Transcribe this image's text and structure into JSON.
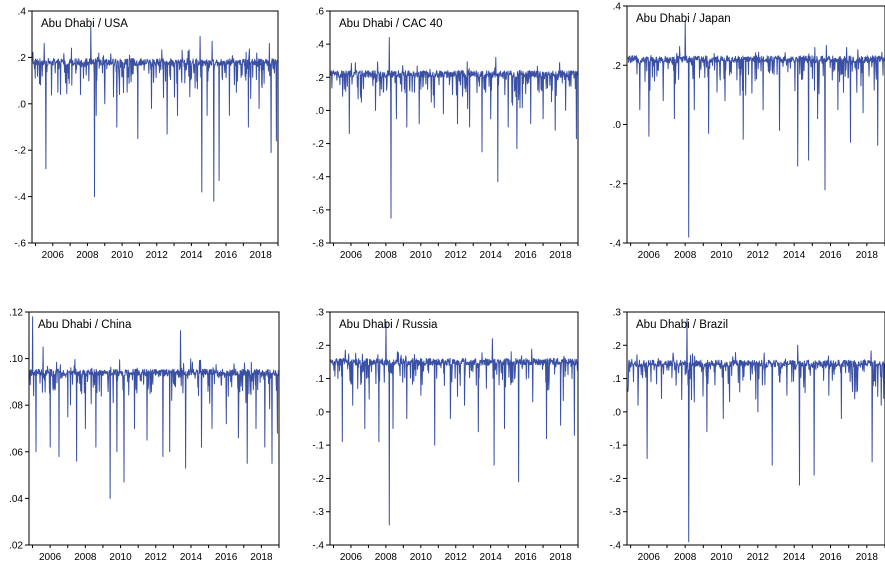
{
  "figure": {
    "series_color": "#3a50a4"
  },
  "chart_data": [
    {
      "type": "line",
      "title": "Abu Dhabi / USA",
      "xlim": [
        2004.8,
        2019.0
      ],
      "ylim": [
        -0.6,
        0.4
      ],
      "y_ticks": [
        -0.6,
        -0.4,
        -0.2,
        0.0,
        0.2,
        0.4
      ],
      "y_tick_labels": [
        "-.6",
        "-.4",
        "-.2",
        ".0",
        ".2",
        ".4"
      ],
      "x_ticks": [
        2006,
        2008,
        2010,
        2012,
        2014,
        2016,
        2018
      ],
      "x_tick_labels": [
        "2006",
        "2008",
        "2010",
        "2012",
        "2014",
        "2016",
        "2018"
      ],
      "baseline": 0.18,
      "spikes": [
        [
          2005.6,
          -0.28
        ],
        [
          2005.5,
          0.26
        ],
        [
          2006.3,
          0.05
        ],
        [
          2007.1,
          0.08
        ],
        [
          2007.6,
          0.04
        ],
        [
          2008.2,
          0.33
        ],
        [
          2008.4,
          -0.4
        ],
        [
          2008.5,
          -0.05
        ],
        [
          2009.0,
          0.0
        ],
        [
          2009.7,
          -0.1
        ],
        [
          2010.3,
          0.05
        ],
        [
          2010.9,
          -0.15
        ],
        [
          2011.7,
          -0.02
        ],
        [
          2012.6,
          -0.13
        ],
        [
          2013.2,
          -0.05
        ],
        [
          2013.9,
          0.03
        ],
        [
          2014.5,
          0.29
        ],
        [
          2014.6,
          -0.38
        ],
        [
          2014.9,
          -0.05
        ],
        [
          2015.2,
          0.27
        ],
        [
          2015.3,
          -0.42
        ],
        [
          2015.6,
          -0.33
        ],
        [
          2016.2,
          -0.05
        ],
        [
          2016.6,
          0.05
        ],
        [
          2017.3,
          -0.1
        ],
        [
          2017.9,
          -0.02
        ],
        [
          2018.5,
          0.26
        ],
        [
          2018.6,
          -0.21
        ],
        [
          2018.9,
          -0.16
        ]
      ]
    },
    {
      "type": "line",
      "title": "Abu Dhabi / CAC 40",
      "xlim": [
        2004.8,
        2019.0
      ],
      "ylim": [
        -0.8,
        0.6
      ],
      "y_ticks": [
        -0.8,
        -0.6,
        -0.4,
        -0.2,
        0.0,
        0.2,
        0.4,
        0.6
      ],
      "y_tick_labels": [
        "-.8",
        "-.6",
        "-.4",
        "-.2",
        ".0",
        ".2",
        ".4",
        ".6"
      ],
      "x_ticks": [
        2006,
        2008,
        2010,
        2012,
        2014,
        2016,
        2018
      ],
      "x_tick_labels": [
        "2006",
        "2008",
        "2010",
        "2012",
        "2014",
        "2016",
        "2018"
      ],
      "baseline": 0.22,
      "spikes": [
        [
          2005.9,
          -0.14
        ],
        [
          2006.6,
          0.05
        ],
        [
          2007.4,
          0.0
        ],
        [
          2008.2,
          0.44
        ],
        [
          2008.3,
          -0.65
        ],
        [
          2008.6,
          -0.05
        ],
        [
          2009.2,
          -0.1
        ],
        [
          2009.9,
          -0.08
        ],
        [
          2010.6,
          0.05
        ],
        [
          2011.3,
          -0.02
        ],
        [
          2012.1,
          -0.08
        ],
        [
          2012.8,
          -0.1
        ],
        [
          2013.5,
          -0.25
        ],
        [
          2014.0,
          -0.05
        ],
        [
          2014.3,
          0.32
        ],
        [
          2014.4,
          -0.43
        ],
        [
          2015.0,
          -0.1
        ],
        [
          2015.5,
          -0.23
        ],
        [
          2016.3,
          -0.08
        ],
        [
          2017.0,
          -0.05
        ],
        [
          2017.7,
          -0.12
        ],
        [
          2018.3,
          0.0
        ],
        [
          2018.9,
          -0.17
        ]
      ]
    },
    {
      "type": "line",
      "title": "Abu Dhabi / Japan",
      "xlim": [
        2004.8,
        2019.0
      ],
      "ylim": [
        -0.4,
        0.4
      ],
      "y_ticks": [
        -0.4,
        -0.2,
        0.0,
        0.2,
        0.4
      ],
      "y_tick_labels": [
        "-.4",
        "-.2",
        ".0",
        ".2",
        ".4"
      ],
      "x_ticks": [
        2006,
        2008,
        2010,
        2012,
        2014,
        2016,
        2018
      ],
      "x_tick_labels": [
        "2006",
        "2008",
        "2010",
        "2012",
        "2014",
        "2016",
        "2018"
      ],
      "baseline": 0.22,
      "spikes": [
        [
          2005.5,
          0.05
        ],
        [
          2006.0,
          -0.04
        ],
        [
          2006.8,
          0.08
        ],
        [
          2007.4,
          0.02
        ],
        [
          2008.0,
          0.35
        ],
        [
          2008.2,
          -0.38
        ],
        [
          2008.5,
          0.05
        ],
        [
          2009.3,
          -0.03
        ],
        [
          2010.2,
          0.08
        ],
        [
          2011.2,
          -0.05
        ],
        [
          2012.3,
          0.05
        ],
        [
          2013.2,
          -0.02
        ],
        [
          2014.2,
          -0.14
        ],
        [
          2014.8,
          -0.12
        ],
        [
          2015.3,
          0.02
        ],
        [
          2015.7,
          -0.22
        ],
        [
          2016.4,
          0.05
        ],
        [
          2017.1,
          -0.06
        ],
        [
          2017.8,
          0.04
        ],
        [
          2018.6,
          -0.07
        ]
      ]
    },
    {
      "type": "line",
      "title": "Abu Dhabi / China",
      "xlim": [
        2004.8,
        2019.0
      ],
      "ylim": [
        0.02,
        0.12
      ],
      "y_ticks": [
        0.02,
        0.04,
        0.06,
        0.08,
        0.1,
        0.12
      ],
      "y_tick_labels": [
        ".02",
        ".04",
        ".06",
        ".08",
        ".10",
        ".12"
      ],
      "x_ticks": [
        2006,
        2008,
        2010,
        2012,
        2014,
        2016,
        2018
      ],
      "x_tick_labels": [
        "2006",
        "2008",
        "2010",
        "2012",
        "2014",
        "2016",
        "2018"
      ],
      "baseline": 0.094,
      "spikes": [
        [
          2005.0,
          0.118
        ],
        [
          2005.2,
          0.06
        ],
        [
          2005.6,
          0.105
        ],
        [
          2006.0,
          0.062
        ],
        [
          2006.5,
          0.058
        ],
        [
          2007.0,
          0.075
        ],
        [
          2007.5,
          0.056
        ],
        [
          2008.0,
          0.07
        ],
        [
          2008.6,
          0.062
        ],
        [
          2009.4,
          0.04
        ],
        [
          2009.8,
          0.06
        ],
        [
          2010.2,
          0.047
        ],
        [
          2010.8,
          0.07
        ],
        [
          2011.5,
          0.065
        ],
        [
          2012.4,
          0.058
        ],
        [
          2012.8,
          0.06
        ],
        [
          2013.4,
          0.112
        ],
        [
          2013.7,
          0.053
        ],
        [
          2014.6,
          0.062
        ],
        [
          2015.2,
          0.07
        ],
        [
          2016.0,
          0.072
        ],
        [
          2016.7,
          0.066
        ],
        [
          2017.2,
          0.055
        ],
        [
          2017.7,
          0.07
        ],
        [
          2018.2,
          0.062
        ],
        [
          2018.6,
          0.055
        ],
        [
          2018.9,
          0.068
        ]
      ]
    },
    {
      "type": "line",
      "title": "Abu Dhabi / Russia",
      "xlim": [
        2004.8,
        2019.0
      ],
      "ylim": [
        -0.4,
        0.3
      ],
      "y_ticks": [
        -0.4,
        -0.3,
        -0.2,
        -0.1,
        0.0,
        0.1,
        0.2,
        0.3
      ],
      "y_tick_labels": [
        "-.4",
        "-.3",
        "-.2",
        "-.1",
        ".0",
        ".1",
        ".2",
        ".3"
      ],
      "x_ticks": [
        2006,
        2008,
        2010,
        2012,
        2014,
        2016,
        2018
      ],
      "x_tick_labels": [
        "2006",
        "2008",
        "2010",
        "2012",
        "2014",
        "2016",
        "2018"
      ],
      "baseline": 0.15,
      "spikes": [
        [
          2005.5,
          -0.09
        ],
        [
          2006.1,
          0.02
        ],
        [
          2006.8,
          -0.05
        ],
        [
          2007.6,
          -0.09
        ],
        [
          2008.0,
          0.27
        ],
        [
          2008.2,
          -0.34
        ],
        [
          2008.4,
          -0.05
        ],
        [
          2009.2,
          -0.02
        ],
        [
          2010.0,
          0.05
        ],
        [
          2010.8,
          -0.1
        ],
        [
          2011.7,
          -0.02
        ],
        [
          2012.5,
          0.02
        ],
        [
          2013.3,
          -0.06
        ],
        [
          2014.1,
          0.22
        ],
        [
          2014.2,
          -0.16
        ],
        [
          2014.8,
          -0.05
        ],
        [
          2015.6,
          -0.21
        ],
        [
          2016.4,
          0.03
        ],
        [
          2017.2,
          -0.08
        ],
        [
          2018.0,
          -0.04
        ],
        [
          2018.8,
          -0.07
        ]
      ]
    },
    {
      "type": "line",
      "title": "Abu Dhabi / Brazil",
      "xlim": [
        2004.8,
        2019.0
      ],
      "ylim": [
        -0.4,
        0.3
      ],
      "y_ticks": [
        -0.4,
        -0.3,
        -0.2,
        -0.1,
        0.0,
        0.1,
        0.2,
        0.3
      ],
      "y_tick_labels": [
        "-.4",
        "-.3",
        "-.2",
        "-.1",
        ".0",
        ".1",
        ".2",
        ".3"
      ],
      "x_ticks": [
        2006,
        2008,
        2010,
        2012,
        2014,
        2016,
        2018
      ],
      "x_tick_labels": [
        "2006",
        "2008",
        "2010",
        "2012",
        "2014",
        "2016",
        "2018"
      ],
      "baseline": 0.145,
      "spikes": [
        [
          2005.4,
          0.02
        ],
        [
          2005.9,
          -0.14
        ],
        [
          2006.7,
          0.04
        ],
        [
          2007.5,
          0.08
        ],
        [
          2008.1,
          0.28
        ],
        [
          2008.2,
          -0.39
        ],
        [
          2008.5,
          0.03
        ],
        [
          2009.2,
          -0.06
        ],
        [
          2010.1,
          -0.02
        ],
        [
          2011.0,
          0.06
        ],
        [
          2012.0,
          0.0
        ],
        [
          2012.8,
          -0.16
        ],
        [
          2013.6,
          0.05
        ],
        [
          2014.2,
          0.2
        ],
        [
          2014.3,
          -0.22
        ],
        [
          2015.1,
          -0.19
        ],
        [
          2015.9,
          0.05
        ],
        [
          2016.6,
          -0.02
        ],
        [
          2017.4,
          0.06
        ],
        [
          2018.3,
          -0.15
        ],
        [
          2018.8,
          0.02
        ]
      ]
    }
  ]
}
